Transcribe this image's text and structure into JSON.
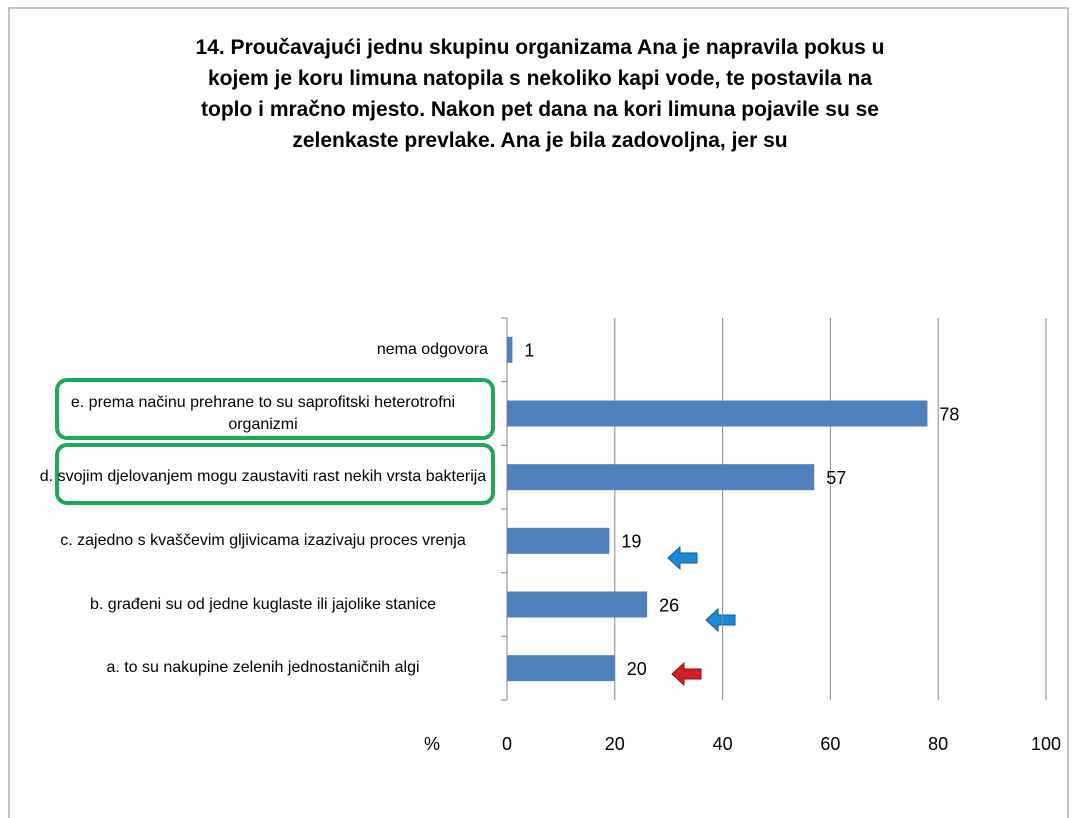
{
  "chart_data": {
    "type": "bar",
    "orientation": "horizontal",
    "title": "14. Proučavajući jednu skupinu organizama Ana je napravila pokus u kojem je koru limuna natopila s nekoliko kapi vode, te postavila na toplo i mračno mjesto. Nakon pet dana na kori limuna pojavile su se zelenkaste prevlake. Ana je bila zadovoljna, jer su",
    "x_label": "%",
    "categories": [
      "nema odgovora",
      "e. prema načinu prehrane to su saprofitski heterotrofni organizmi",
      "d. svojim djelovanjem mogu zaustaviti rast nekih vrsta bakterija",
      "c. zajedno s kvaščevim gljivicama izazivaju proces vrenja",
      "b. građeni su od jedne kuglaste ili jajolike stanice",
      "a. to su nakupine zelenih jednostaničnih algi"
    ],
    "values": [
      1,
      78,
      57,
      19,
      26,
      20
    ],
    "color": "#4f81bd",
    "xlim": [
      0,
      100
    ],
    "xticks": [
      0,
      20,
      40,
      60,
      80,
      100
    ],
    "grid": true
  }
}
